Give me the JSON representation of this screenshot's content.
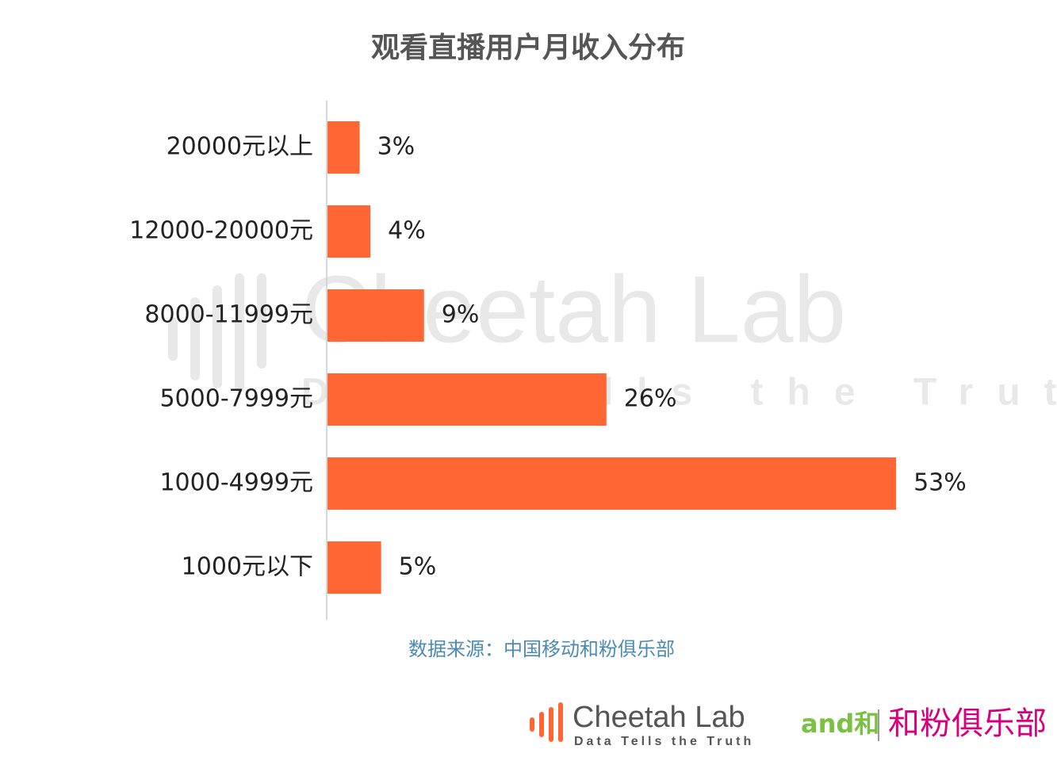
{
  "chart_data": {
    "type": "bar",
    "orientation": "horizontal",
    "title": "观看直播用户月收入分布",
    "categories": [
      "20000元以上",
      "12000-20000元",
      "8000-11999元",
      "5000-7999元",
      "1000-4999元",
      "1000元以下"
    ],
    "values": [
      3,
      4,
      9,
      26,
      53,
      5
    ],
    "value_labels": [
      "3%",
      "4%",
      "9%",
      "26%",
      "53%",
      "5%"
    ],
    "color": "#ff6633",
    "source": "数据来源：中国移动和粉俱乐部"
  },
  "watermark": {
    "title": "Cheetah Lab",
    "tagline": "Data Tells the Truth"
  },
  "footer": {
    "brand": "Cheetah Lab",
    "tagline": "Data Tells the Truth",
    "partner_mark": "and和",
    "partner": "和粉俱乐部"
  }
}
